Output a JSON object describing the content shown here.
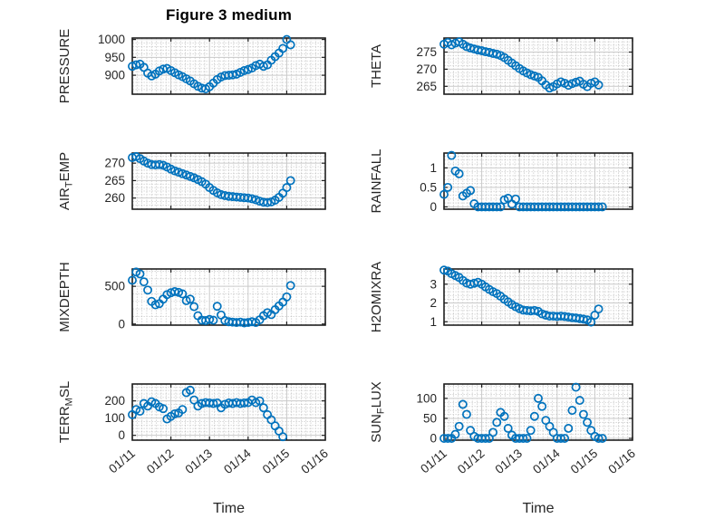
{
  "title": "Figure 3 medium",
  "colors": {
    "marker": "#0072BD",
    "axis": "#1f1f1f",
    "tick_text": "#262626",
    "major_grid": "#c9c9c9",
    "minor_grid": "#b4b4b4",
    "background": "#ffffff"
  },
  "x_axis": {
    "label": "Time",
    "lim": [
      0,
      5
    ],
    "tick_positions": [
      0,
      1,
      2,
      3,
      4,
      5
    ],
    "tick_labels": [
      "01/11",
      "01/12",
      "01/13",
      "01/14",
      "01/15",
      "01/16"
    ]
  },
  "marker_style": "open-circle",
  "chart_data": [
    {
      "type": "scatter",
      "name": "PRESSURE",
      "ylabel_parts": {
        "pre": "PRESSURE",
        "sub": "",
        "post": ""
      },
      "yticks": [
        900,
        950,
        1000
      ],
      "ylim": [
        847,
        1004
      ],
      "x_start": 0,
      "x_step": 0.1,
      "xlabel": "",
      "show_x_tick_labels": false,
      "y": [
        925,
        929,
        931,
        922,
        906,
        898,
        903,
        912,
        917,
        919,
        913,
        907,
        901,
        896,
        890,
        884,
        876,
        869,
        864,
        862,
        868,
        878,
        888,
        895,
        899,
        900,
        901,
        903,
        908,
        913,
        916,
        920,
        927,
        931,
        925,
        929,
        942,
        952,
        962,
        975,
        1000,
        985,
        null
      ]
    },
    {
      "type": "scatter",
      "name": "THETA",
      "ylabel_parts": {
        "pre": "THETA",
        "sub": "",
        "post": ""
      },
      "yticks": [
        265,
        270,
        275
      ],
      "ylim": [
        262.7,
        279.1
      ],
      "x_start": 0,
      "x_step": 0.1,
      "xlabel": "",
      "show_x_tick_labels": false,
      "y": [
        277.3,
        277.8,
        277.1,
        277.6,
        278.0,
        277.3,
        276.6,
        276.2,
        275.9,
        275.6,
        275.4,
        275.1,
        274.9,
        274.6,
        274.4,
        274.0,
        273.4,
        272.6,
        271.8,
        271.0,
        270.2,
        269.5,
        268.9,
        268.4,
        268.0,
        267.6,
        266.6,
        265.4,
        264.5,
        264.9,
        265.7,
        266.3,
        265.9,
        265.3,
        265.8,
        266.2,
        266.5,
        265.6,
        264.9,
        265.9,
        266.3,
        265.4,
        null
      ]
    },
    {
      "type": "scatter",
      "name": "AIR_TEMP",
      "ylabel_parts": {
        "pre": "AIR",
        "sub": "T",
        "post": "EMP"
      },
      "yticks": [
        260,
        265,
        270
      ],
      "ylim": [
        256.8,
        272.9
      ],
      "x_start": 0,
      "x_step": 0.1,
      "xlabel": "",
      "show_x_tick_labels": false,
      "y": [
        271.6,
        271.9,
        271.3,
        270.6,
        270.0,
        269.6,
        269.5,
        269.6,
        269.4,
        268.9,
        268.3,
        267.8,
        267.4,
        267.0,
        266.6,
        266.2,
        265.8,
        265.3,
        264.7,
        264.0,
        263.0,
        262.2,
        261.5,
        261.0,
        260.7,
        260.5,
        260.4,
        260.3,
        260.2,
        260.1,
        260.0,
        259.8,
        259.5,
        259.1,
        258.8,
        258.7,
        258.9,
        259.4,
        260.2,
        261.4,
        263.0,
        265.0,
        null
      ]
    },
    {
      "type": "scatter",
      "name": "RAINFALL",
      "ylabel_parts": {
        "pre": "RAINFALL",
        "sub": "",
        "post": ""
      },
      "yticks": [
        0,
        0.5,
        1
      ],
      "ylim": [
        -0.06,
        1.38
      ],
      "x_start": 0,
      "x_step": 0.1,
      "xlabel": "",
      "show_x_tick_labels": false,
      "y": [
        0.32,
        0.5,
        1.32,
        0.92,
        0.85,
        0.28,
        0.35,
        0.42,
        0.08,
        0,
        0,
        0,
        0,
        0,
        0,
        0,
        0.18,
        0.22,
        0.07,
        0.2,
        0,
        0,
        0,
        0,
        0,
        0,
        0,
        0,
        0,
        0,
        0,
        0,
        0,
        0,
        0,
        0,
        0,
        0,
        0,
        0,
        0,
        0,
        0
      ]
    },
    {
      "type": "scatter",
      "name": "MIXDEPTH",
      "ylabel_parts": {
        "pre": "MIXDEPTH",
        "sub": "",
        "post": ""
      },
      "yticks": [
        0,
        500
      ],
      "ylim": [
        -15,
        730
      ],
      "x_start": 0,
      "x_step": 0.1,
      "xlabel": "",
      "show_x_tick_labels": false,
      "y": [
        580,
        690,
        665,
        560,
        450,
        300,
        255,
        270,
        330,
        390,
        415,
        430,
        420,
        400,
        310,
        330,
        230,
        110,
        50,
        45,
        60,
        50,
        235,
        120,
        45,
        30,
        25,
        20,
        25,
        15,
        20,
        30,
        20,
        55,
        110,
        150,
        125,
        190,
        240,
        290,
        360,
        510,
        null
      ]
    },
    {
      "type": "scatter",
      "name": "H2OMIXRA",
      "ylabel_parts": {
        "pre": "H2OMIXRA",
        "sub": "",
        "post": ""
      },
      "yticks": [
        1,
        2,
        3
      ],
      "ylim": [
        0.82,
        3.81
      ],
      "x_start": 0,
      "x_step": 0.1,
      "xlabel": "",
      "show_x_tick_labels": false,
      "y": [
        3.75,
        3.7,
        3.56,
        3.46,
        3.36,
        3.2,
        3.06,
        3.0,
        3.05,
        3.1,
        3.0,
        2.86,
        2.72,
        2.6,
        2.5,
        2.36,
        2.2,
        2.06,
        1.92,
        1.8,
        1.7,
        1.62,
        1.6,
        1.58,
        1.6,
        1.55,
        1.42,
        1.35,
        1.3,
        1.3,
        1.28,
        1.3,
        1.28,
        1.25,
        1.22,
        1.2,
        1.17,
        1.14,
        1.1,
        0.98,
        1.35,
        1.68,
        null
      ]
    },
    {
      "type": "scatter",
      "name": "TERR_MSL",
      "ylabel_parts": {
        "pre": "TERR",
        "sub": "M",
        "post": "SL"
      },
      "yticks": [
        0,
        100,
        200
      ],
      "ylim": [
        -28,
        298
      ],
      "x_start": 0,
      "x_step": 0.1,
      "xlabel": "Time",
      "show_x_tick_labels": true,
      "y": [
        120,
        150,
        140,
        185,
        170,
        195,
        185,
        165,
        155,
        95,
        110,
        125,
        130,
        150,
        248,
        262,
        205,
        170,
        185,
        190,
        188,
        185,
        188,
        160,
        180,
        188,
        185,
        190,
        185,
        188,
        190,
        205,
        190,
        200,
        160,
        120,
        90,
        55,
        25,
        -8,
        null,
        null,
        null
      ]
    },
    {
      "type": "scatter",
      "name": "SUN_FLUX",
      "ylabel_parts": {
        "pre": "SUN",
        "sub": "F",
        "post": "LUX"
      },
      "yticks": [
        0,
        50,
        100
      ],
      "ylim": [
        -4.5,
        136
      ],
      "x_start": 0,
      "x_step": 0.1,
      "xlabel": "Time",
      "show_x_tick_labels": true,
      "y": [
        0,
        0,
        0,
        10,
        30,
        85,
        60,
        20,
        5,
        0,
        0,
        0,
        0,
        15,
        40,
        65,
        55,
        25,
        8,
        0,
        0,
        0,
        0,
        20,
        55,
        100,
        80,
        45,
        30,
        15,
        0,
        0,
        0,
        25,
        70,
        128,
        95,
        60,
        40,
        20,
        5,
        0,
        0
      ]
    }
  ]
}
